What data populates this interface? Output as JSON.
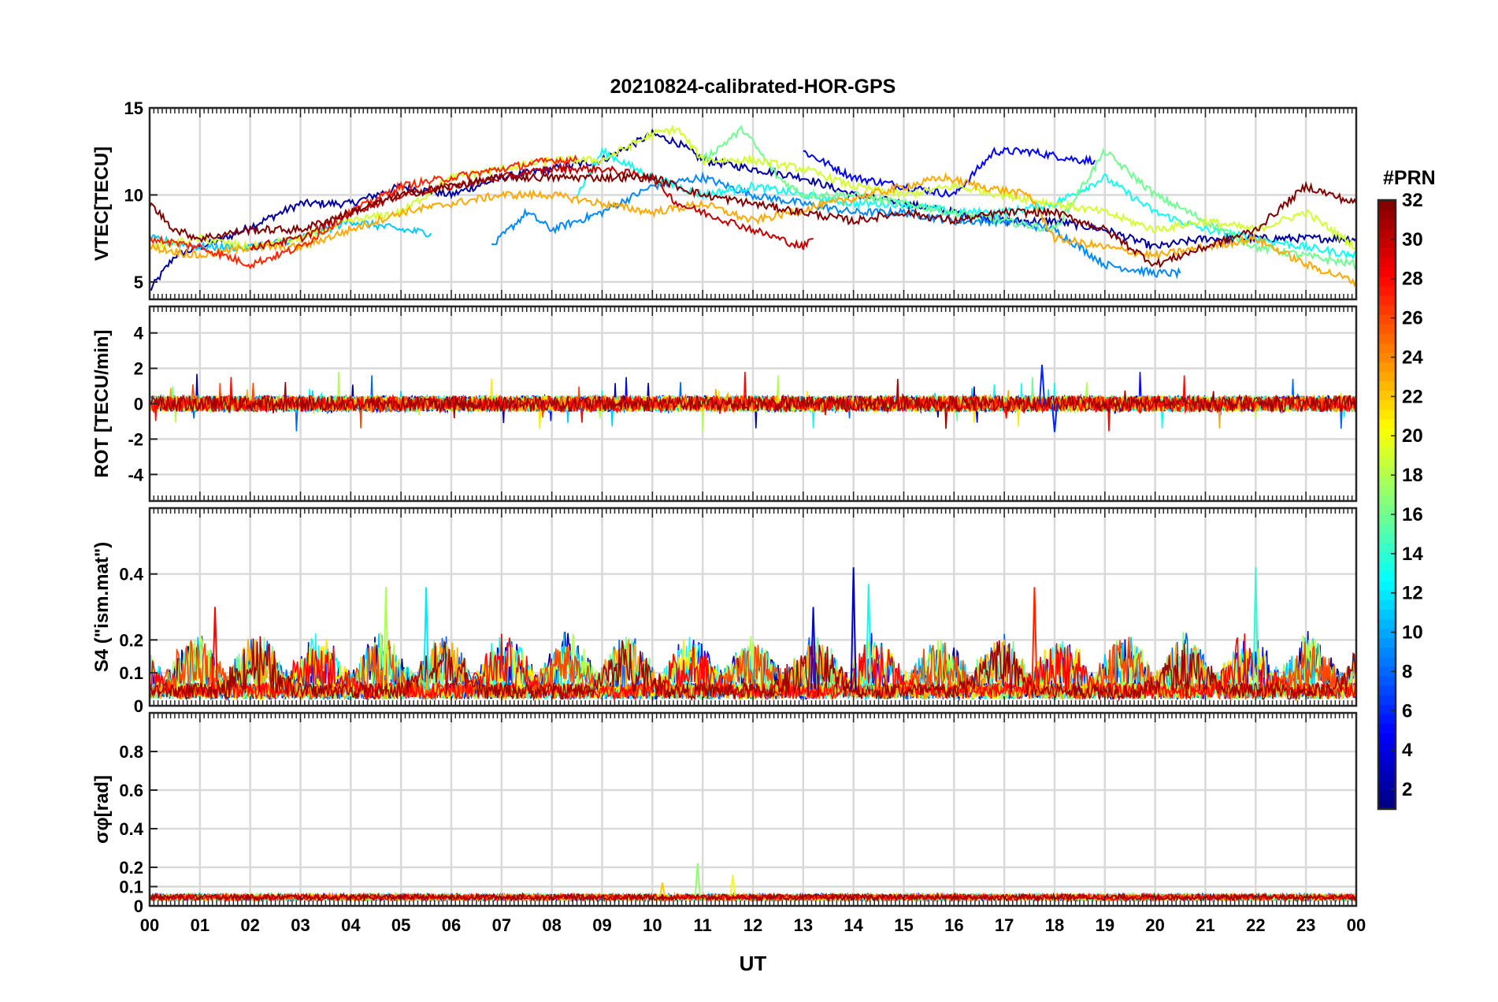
{
  "title": "20210824-calibrated-HOR-GPS",
  "xlabel": "UT",
  "x_ticks": [
    "00",
    "01",
    "02",
    "03",
    "04",
    "05",
    "06",
    "07",
    "08",
    "09",
    "10",
    "11",
    "12",
    "13",
    "14",
    "15",
    "16",
    "17",
    "18",
    "19",
    "20",
    "21",
    "22",
    "23",
    "00"
  ],
  "colorbar": {
    "label": "#PRN",
    "range": [
      1,
      32
    ],
    "ticks": [
      2,
      4,
      6,
      8,
      10,
      12,
      14,
      16,
      18,
      20,
      22,
      24,
      26,
      28,
      30,
      32
    ]
  },
  "chart_data": [
    {
      "type": "line",
      "panel": "VTEC",
      "ylabel": "VTEC[TECU]",
      "ylim": [
        4,
        15
      ],
      "y_ticks": [
        5,
        10,
        15
      ],
      "x": "UT hours 0-24",
      "series": [
        {
          "name": "PRN 2",
          "prn": 2,
          "values": [
            [
              0,
              4.5
            ],
            [
              0.5,
              6.5
            ],
            [
              1.5,
              7.5
            ],
            [
              3,
              9.5
            ],
            [
              4,
              9.5
            ],
            [
              5,
              10.5
            ],
            [
              6,
              10
            ],
            [
              7,
              11
            ],
            [
              8,
              11.5
            ],
            [
              9,
              12
            ],
            [
              10,
              13.5
            ],
            [
              10.5,
              13
            ],
            [
              11,
              12
            ],
            [
              12,
              11.5
            ],
            [
              13,
              11
            ],
            [
              14,
              10
            ],
            [
              15,
              9.5
            ],
            [
              16,
              9
            ],
            [
              17,
              8.5
            ],
            [
              18,
              8.5
            ],
            [
              19,
              8
            ],
            [
              20,
              7
            ],
            [
              21,
              7.5
            ],
            [
              22,
              7.5
            ],
            [
              23,
              7.5
            ],
            [
              24,
              7.5
            ]
          ]
        },
        {
          "name": "PRN 5",
          "prn": 5,
          "values": [
            [
              13,
              12.5
            ],
            [
              14,
              11
            ],
            [
              15,
              10.5
            ],
            [
              16,
              10
            ],
            [
              16.8,
              12.5
            ],
            [
              17.5,
              12.5
            ],
            [
              18.5,
              12
            ],
            [
              18.8,
              12
            ]
          ]
        },
        {
          "name": "PRN 9",
          "prn": 9,
          "values": [
            [
              6.8,
              7
            ],
            [
              7.5,
              9
            ],
            [
              8,
              8
            ],
            [
              9,
              9
            ],
            [
              10,
              10.5
            ],
            [
              11,
              11
            ],
            [
              12,
              10
            ],
            [
              13,
              9.5
            ],
            [
              14,
              9
            ],
            [
              15,
              9
            ],
            [
              16,
              8.5
            ],
            [
              17,
              8.5
            ],
            [
              18,
              8
            ],
            [
              19,
              6
            ],
            [
              20,
              5.5
            ],
            [
              20.5,
              5.5
            ]
          ]
        },
        {
          "name": "PRN 11",
          "prn": 11,
          "values": [
            [
              0,
              7.5
            ],
            [
              1,
              7
            ],
            [
              2,
              7
            ],
            [
              3,
              7.5
            ],
            [
              4,
              8.5
            ],
            [
              5,
              8
            ],
            [
              5.6,
              7.8
            ]
          ]
        },
        {
          "name": "PRN 13",
          "prn": 13,
          "values": [
            [
              8.5,
              10
            ],
            [
              9,
              12.5
            ],
            [
              10,
              11
            ],
            [
              11,
              10
            ],
            [
              12,
              10.5
            ],
            [
              13,
              10
            ],
            [
              14,
              9.5
            ],
            [
              15,
              9.5
            ],
            [
              16,
              9
            ],
            [
              17,
              9
            ],
            [
              18,
              9.5
            ],
            [
              19,
              11
            ],
            [
              20,
              9
            ],
            [
              21,
              8
            ],
            [
              22,
              7.5
            ],
            [
              23,
              7
            ],
            [
              24,
              6.5
            ]
          ]
        },
        {
          "name": "PRN 16",
          "prn": 16,
          "values": [
            [
              11,
              12
            ],
            [
              11.8,
              13.8
            ],
            [
              12.5,
              11
            ],
            [
              13,
              10
            ],
            [
              14,
              10
            ],
            [
              15,
              9.5
            ],
            [
              16,
              9
            ],
            [
              17,
              8.5
            ],
            [
              18,
              8
            ],
            [
              19,
              12.5
            ],
            [
              20,
              10
            ],
            [
              21,
              8.5
            ],
            [
              22,
              7
            ],
            [
              23,
              6.5
            ],
            [
              24,
              6
            ]
          ]
        },
        {
          "name": "PRN 19",
          "prn": 19,
          "values": [
            [
              0,
              7
            ],
            [
              1,
              7.5
            ],
            [
              2,
              7
            ],
            [
              3,
              7.5
            ],
            [
              4,
              8.5
            ],
            [
              5,
              9
            ],
            [
              6,
              11
            ],
            [
              7,
              11.5
            ],
            [
              8,
              12
            ],
            [
              9,
              12
            ],
            [
              10,
              13.5
            ],
            [
              10.5,
              13.8
            ],
            [
              11,
              12
            ],
            [
              12,
              12
            ],
            [
              13,
              11.5
            ],
            [
              14,
              10.5
            ],
            [
              15,
              10
            ],
            [
              16,
              10.5
            ],
            [
              17,
              10
            ],
            [
              18,
              9.5
            ],
            [
              19,
              9
            ],
            [
              20,
              8
            ],
            [
              21,
              8.5
            ],
            [
              22,
              8
            ],
            [
              23,
              9
            ],
            [
              24,
              7
            ]
          ]
        },
        {
          "name": "PRN 23",
          "prn": 23,
          "values": [
            [
              0,
              7
            ],
            [
              1,
              6.5
            ],
            [
              2,
              7
            ],
            [
              3,
              7
            ],
            [
              4,
              8
            ],
            [
              5,
              9
            ],
            [
              6,
              9.5
            ],
            [
              7,
              10
            ],
            [
              8,
              10
            ],
            [
              9,
              9.5
            ],
            [
              10,
              9
            ],
            [
              11,
              9.5
            ],
            [
              12,
              8.5
            ],
            [
              15.8,
              11
            ],
            [
              16.5,
              10.5
            ],
            [
              17.5,
              10
            ],
            [
              18,
              7.5
            ],
            [
              19,
              7
            ],
            [
              20,
              6.5
            ],
            [
              21,
              7
            ],
            [
              22,
              7.5
            ],
            [
              23,
              6
            ],
            [
              24,
              5
            ]
          ]
        },
        {
          "name": "PRN 27",
          "prn": 27,
          "values": [
            [
              0,
              7.5
            ],
            [
              1,
              7
            ],
            [
              2,
              6
            ],
            [
              3,
              7
            ],
            [
              4,
              9
            ],
            [
              5,
              10.5
            ],
            [
              6,
              11
            ],
            [
              7,
              11.5
            ],
            [
              8,
              12
            ],
            [
              8.5,
              12
            ]
          ]
        },
        {
          "name": "PRN 30",
          "prn": 30,
          "values": [
            [
              2,
              7
            ],
            [
              3,
              7.5
            ],
            [
              4,
              9
            ],
            [
              5,
              10
            ],
            [
              6,
              10.5
            ],
            [
              7,
              11
            ],
            [
              8,
              11.5
            ],
            [
              9,
              11.5
            ],
            [
              10,
              11
            ],
            [
              10.5,
              9.5
            ],
            [
              11,
              9
            ],
            [
              12,
              8
            ],
            [
              13,
              7
            ],
            [
              13.2,
              7.5
            ]
          ]
        },
        {
          "name": "PRN 32",
          "prn": 32,
          "values": [
            [
              0,
              9.5
            ],
            [
              0.5,
              8
            ],
            [
              1,
              7.5
            ],
            [
              2,
              8
            ],
            [
              3,
              8
            ],
            [
              4,
              9
            ],
            [
              5,
              10
            ],
            [
              6,
              10.5
            ],
            [
              7,
              11
            ],
            [
              8,
              11
            ],
            [
              9,
              11
            ],
            [
              10,
              11
            ],
            [
              11,
              10
            ],
            [
              12,
              9.5
            ],
            [
              13,
              9
            ],
            [
              14,
              8.5
            ],
            [
              15,
              9
            ],
            [
              16,
              8.5
            ],
            [
              17,
              9
            ],
            [
              18,
              9
            ],
            [
              19,
              8
            ],
            [
              20,
              6
            ],
            [
              21,
              7
            ],
            [
              22,
              8
            ],
            [
              23,
              10.5
            ],
            [
              23.5,
              10
            ],
            [
              24,
              9.5
            ]
          ]
        }
      ]
    },
    {
      "type": "line",
      "panel": "ROT",
      "ylabel": "ROT [TECU/min]",
      "ylim": [
        -5.5,
        5.5
      ],
      "y_ticks": [
        -4,
        -2,
        0,
        2,
        4
      ],
      "note": "Noisy fluctuations around 0 for all PRNs; peaks up to about ±2",
      "series_extremes": {
        "max": 2.2,
        "min": -1.6
      }
    },
    {
      "type": "line",
      "panel": "S4",
      "ylabel": "S4 (\"ism.mat\")",
      "ylim": [
        0,
        0.6
      ],
      "y_ticks": [
        0,
        0.1,
        0.2,
        0.4
      ],
      "note": "Mostly below 0.2 with spikes; maximum about 0.42 near 14 UT and 22 UT",
      "spikes": [
        {
          "ut": 1.3,
          "value": 0.3,
          "prn": 28
        },
        {
          "ut": 4.7,
          "value": 0.36,
          "prn": 18
        },
        {
          "ut": 5.5,
          "value": 0.36,
          "prn": 12
        },
        {
          "ut": 13.2,
          "value": 0.3,
          "prn": 5
        },
        {
          "ut": 14.0,
          "value": 0.42,
          "prn": 3
        },
        {
          "ut": 14.3,
          "value": 0.37,
          "prn": 13
        },
        {
          "ut": 17.6,
          "value": 0.36,
          "prn": 27
        },
        {
          "ut": 22.0,
          "value": 0.42,
          "prn": 14
        }
      ]
    },
    {
      "type": "line",
      "panel": "sigma_phi",
      "ylabel": "σφ[rad]",
      "ylim": [
        0,
        1
      ],
      "y_ticks": [
        0,
        0.1,
        0.2,
        0.4,
        0.6,
        0.8
      ],
      "note": "Phase scintillation low, mostly 0.02-0.08; maximum about 0.22 near 11 UT",
      "spikes": [
        {
          "ut": 10.9,
          "value": 0.22,
          "prn": 17
        },
        {
          "ut": 11.6,
          "value": 0.16,
          "prn": 20
        },
        {
          "ut": 10.2,
          "value": 0.12,
          "prn": 22
        }
      ]
    }
  ]
}
